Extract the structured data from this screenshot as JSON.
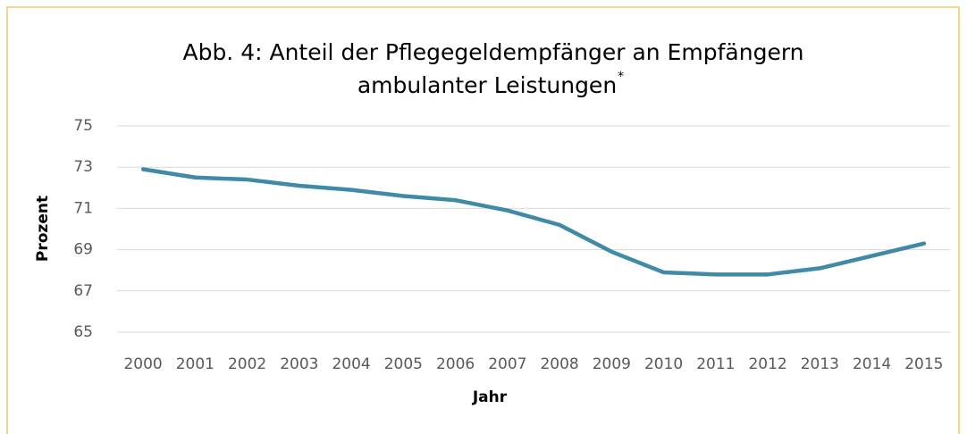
{
  "chart_data": {
    "type": "line",
    "title": [
      "Abb. 4: Anteil der Pflegegeldempfänger an Empfängern",
      "ambulanter Leistungen"
    ],
    "title_note": "*",
    "x_label": "Jahr",
    "y_label": "Prozent",
    "categories": [
      "2000",
      "2001",
      "2002",
      "2003",
      "2004",
      "2005",
      "2006",
      "2007",
      "2008",
      "2009",
      "2010",
      "2011",
      "2012",
      "2013",
      "2014",
      "2015"
    ],
    "values": [
      72.9,
      72.5,
      72.4,
      72.1,
      71.9,
      71.6,
      71.4,
      70.9,
      70.2,
      68.9,
      67.9,
      67.8,
      67.8,
      68.1,
      68.7,
      69.3
    ],
    "color": "#3e8aa7",
    "ylim": [
      65,
      75
    ],
    "yticks": [
      65,
      67,
      69,
      71,
      73,
      75
    ],
    "grid": true
  }
}
